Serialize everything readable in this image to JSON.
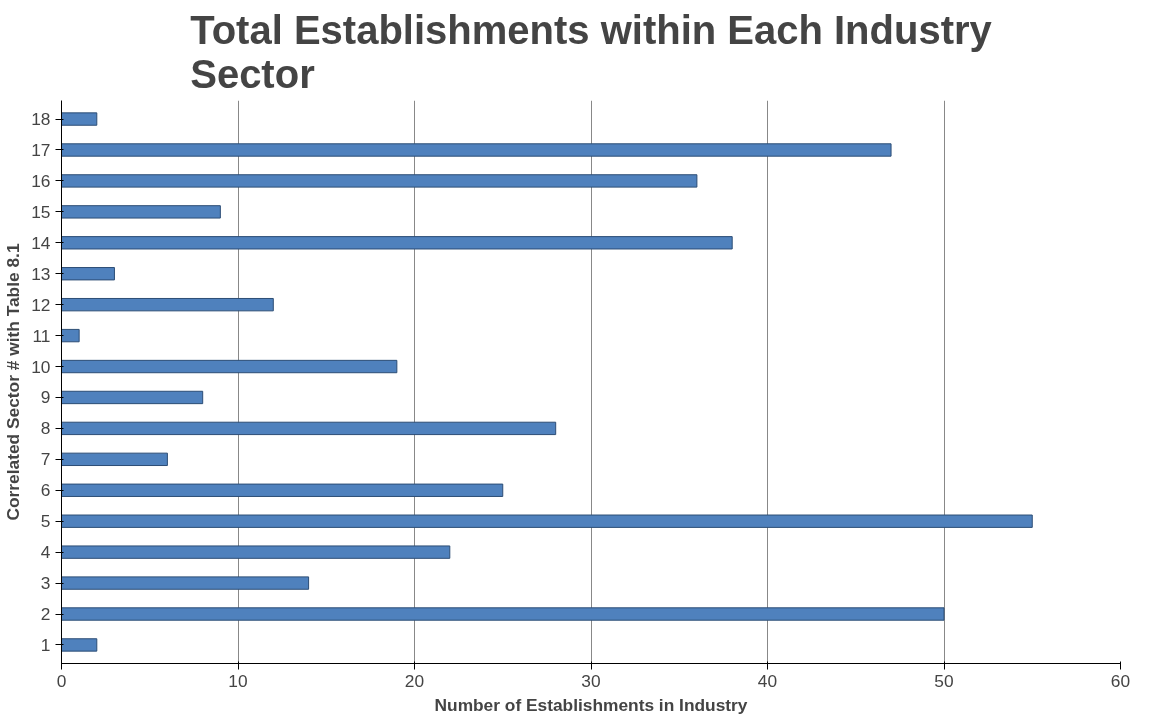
{
  "chart_data": {
    "type": "bar",
    "orientation": "horizontal",
    "title": "Total Establishments within Each Industry Sector",
    "xlabel": "Number of Establishments in Industry",
    "ylabel": "Correlated Sector # with Table 8.1",
    "categories": [
      "18",
      "17",
      "16",
      "15",
      "14",
      "13",
      "12",
      "11",
      "10",
      "9",
      "8",
      "7",
      "6",
      "5",
      "4",
      "3",
      "2",
      "1"
    ],
    "values": [
      2,
      47,
      36,
      9,
      38,
      3,
      12,
      1,
      19,
      8,
      28,
      6,
      25,
      55,
      22,
      14,
      50,
      2
    ],
    "color": "#4f81bd",
    "xlim": [
      0,
      60
    ],
    "xticks": [
      0,
      10,
      20,
      30,
      40,
      50,
      60
    ],
    "grid": "x"
  }
}
